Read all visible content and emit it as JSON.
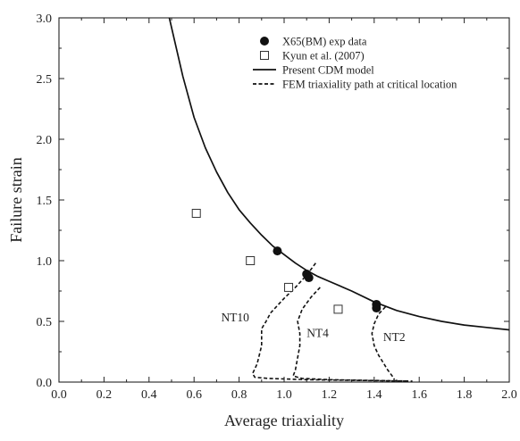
{
  "chart_data": {
    "type": "scatter",
    "xlabel": "Average triaxiality",
    "ylabel": "Failure strain",
    "xlim": [
      0.0,
      2.0
    ],
    "ylim": [
      0.0,
      3.0
    ],
    "xticks": [
      "0.0",
      "0.2",
      "0.4",
      "0.6",
      "0.8",
      "1.0",
      "1.2",
      "1.4",
      "1.6",
      "1.8",
      "2.0"
    ],
    "yticks": [
      "0.0",
      "0.5",
      "1.0",
      "1.5",
      "2.0",
      "2.5",
      "3.0"
    ],
    "grid": false,
    "legend_position": "top-right",
    "legend": [
      {
        "label": "X65(BM) exp data",
        "marker": "filled-circle"
      },
      {
        "label": "Kyun et al. (2007)",
        "marker": "open-square"
      },
      {
        "label": "Present CDM model",
        "line": "solid"
      },
      {
        "label": "FEM triaxiality path at critical location",
        "line": "dashed"
      }
    ],
    "series": [
      {
        "name": "X65(BM) exp data",
        "kind": "scatter",
        "marker": "filled-circle",
        "x": [
          0.97,
          1.1,
          1.11,
          1.41,
          1.41
        ],
        "y": [
          1.08,
          0.89,
          0.86,
          0.64,
          0.61
        ]
      },
      {
        "name": "Kyun et al. (2007)",
        "kind": "scatter",
        "marker": "open-square",
        "x": [
          0.61,
          0.85,
          1.02,
          1.24
        ],
        "y": [
          1.39,
          1.0,
          0.78,
          0.6
        ]
      },
      {
        "name": "Present CDM model",
        "kind": "line",
        "style": "solid",
        "x": [
          0.49,
          0.55,
          0.6,
          0.65,
          0.7,
          0.75,
          0.8,
          0.85,
          0.9,
          0.95,
          1.0,
          1.05,
          1.1,
          1.15,
          1.2,
          1.3,
          1.4,
          1.5,
          1.6,
          1.7,
          1.8,
          1.9,
          2.0
        ],
        "y": [
          3.0,
          2.52,
          2.18,
          1.93,
          1.73,
          1.56,
          1.42,
          1.31,
          1.21,
          1.12,
          1.05,
          0.98,
          0.92,
          0.87,
          0.83,
          0.75,
          0.66,
          0.59,
          0.54,
          0.5,
          0.47,
          0.45,
          0.43
        ]
      },
      {
        "name": "NT10",
        "kind": "line",
        "style": "dashed",
        "x": [
          1.14,
          1.1,
          1.05,
          1.0,
          0.94,
          0.92,
          0.9,
          0.9,
          0.88,
          0.86,
          0.87,
          0.93,
          1.1,
          1.3,
          1.45,
          1.55
        ],
        "y": [
          0.98,
          0.88,
          0.78,
          0.69,
          0.57,
          0.5,
          0.44,
          0.3,
          0.15,
          0.07,
          0.04,
          0.03,
          0.02,
          0.015,
          0.01,
          0.008
        ]
      },
      {
        "name": "NT4",
        "kind": "line",
        "style": "dashed",
        "x": [
          1.16,
          1.12,
          1.08,
          1.06,
          1.07,
          1.07,
          1.06,
          1.05,
          1.04,
          1.08,
          1.2,
          1.35,
          1.5,
          1.57
        ],
        "y": [
          0.78,
          0.7,
          0.6,
          0.5,
          0.4,
          0.3,
          0.2,
          0.1,
          0.05,
          0.03,
          0.02,
          0.015,
          0.01,
          0.008
        ]
      },
      {
        "name": "NT2",
        "kind": "line",
        "style": "dashed",
        "x": [
          1.45,
          1.42,
          1.4,
          1.39,
          1.4,
          1.42,
          1.44,
          1.46,
          1.48,
          1.49
        ],
        "y": [
          0.62,
          0.56,
          0.48,
          0.4,
          0.3,
          0.22,
          0.16,
          0.1,
          0.05,
          0.02
        ]
      }
    ],
    "annotations": [
      {
        "text": "NT10",
        "x": 0.72,
        "y": 0.5
      },
      {
        "text": "NT4",
        "x": 1.1,
        "y": 0.37
      },
      {
        "text": "NT2",
        "x": 1.44,
        "y": 0.34
      }
    ]
  }
}
